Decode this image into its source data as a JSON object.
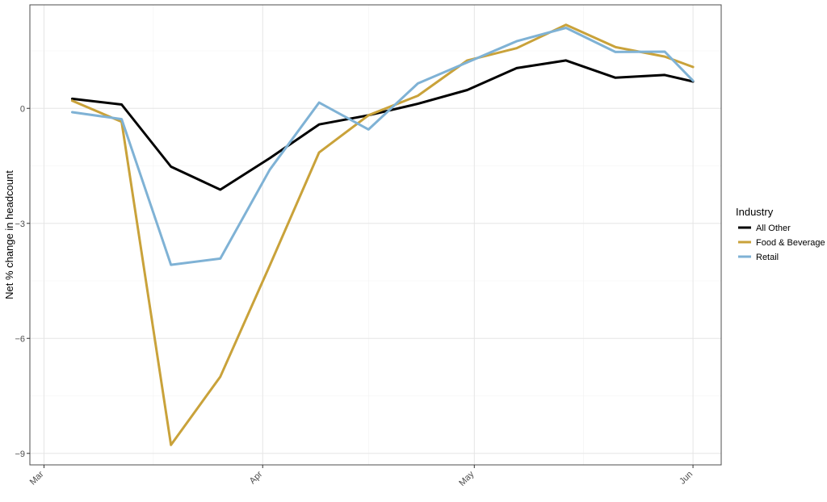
{
  "chart_data": {
    "type": "line",
    "title": "",
    "xlabel": "",
    "ylabel": "Net % change in headcount",
    "x_ticks": [
      "Mar",
      "Apr",
      "May",
      "Jun"
    ],
    "x": [
      "2020-03-05",
      "2020-03-12",
      "2020-03-19",
      "2020-03-26",
      "2020-04-02",
      "2020-04-09",
      "2020-04-16",
      "2020-04-23",
      "2020-04-30",
      "2020-05-07",
      "2020-05-14",
      "2020-05-21",
      "2020-05-28",
      "2020-06-01"
    ],
    "xlim": [
      "2020-02-28",
      "2020-06-05"
    ],
    "ylim": [
      -9.3,
      2.7
    ],
    "y_ticks": [
      0,
      -3,
      -6,
      -9
    ],
    "y_tick_labels": [
      "0",
      "−3",
      "−6",
      "−9"
    ],
    "grid": true,
    "legend": {
      "title": "Industry",
      "position": "right"
    },
    "series": [
      {
        "name": "All Other",
        "color": "#000000",
        "values": [
          0.25,
          0.1,
          -1.52,
          -2.12,
          -1.3,
          -0.42,
          -0.18,
          0.12,
          0.48,
          1.05,
          1.25,
          0.8,
          0.87,
          0.7
        ]
      },
      {
        "name": "Food & Beverage",
        "color": "#C9A23A",
        "values": [
          0.2,
          -0.35,
          -8.78,
          -7.0,
          -4.1,
          -1.15,
          -0.18,
          0.33,
          1.25,
          1.57,
          2.18,
          1.6,
          1.35,
          1.08
        ]
      },
      {
        "name": "Retail",
        "color": "#7FB2D5",
        "values": [
          -0.1,
          -0.28,
          -4.08,
          -3.92,
          -1.6,
          0.15,
          -0.55,
          0.65,
          1.2,
          1.75,
          2.1,
          1.47,
          1.48,
          0.72
        ]
      }
    ]
  }
}
